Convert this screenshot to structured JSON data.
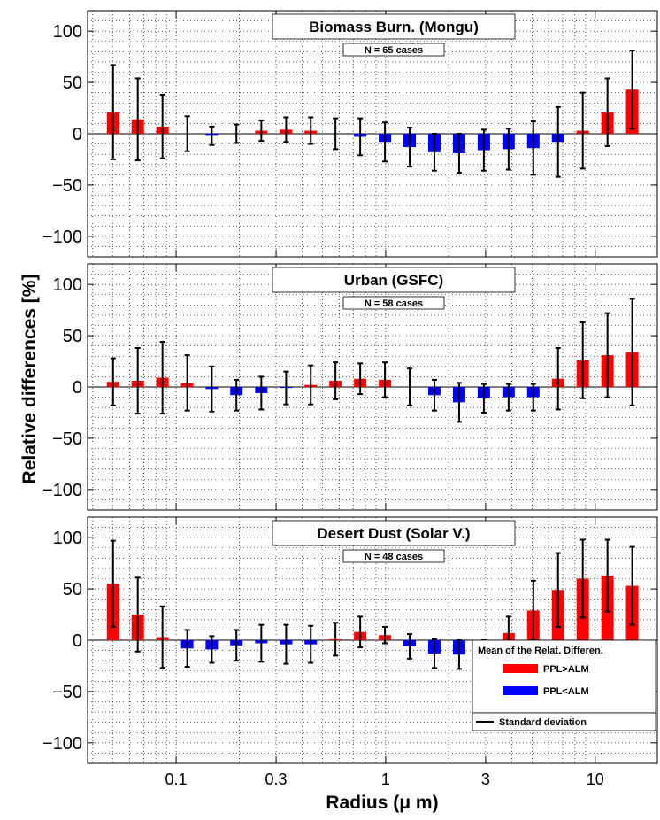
{
  "y_axis_label": "Relative differences [%]",
  "x_axis_label": "Radius (μ m)",
  "x_tick_labels": [
    "0.1",
    "0.3",
    "1",
    "3",
    "10"
  ],
  "y_tick_labels": [
    "100",
    "50",
    "0",
    "−50",
    "−100"
  ],
  "legend": {
    "title": "Mean of the Relat. Differen.",
    "positive_label": "PPL>ALM",
    "negative_label": "PPL<ALM",
    "std_label": "Standard deviation"
  },
  "colors": {
    "positive": "#ff0000",
    "negative": "#0000ff",
    "errorbar": "#000000"
  },
  "chart_data": [
    {
      "type": "bar",
      "title": "Biomass Burn. (Mongu)",
      "subtitle": "N = 65 cases",
      "xscale": "log",
      "ylim": [
        -120,
        120
      ],
      "x": [
        0.05,
        0.0656,
        0.0861,
        0.113,
        0.148,
        0.194,
        0.255,
        0.335,
        0.439,
        0.576,
        0.756,
        0.992,
        1.302,
        1.708,
        2.242,
        2.942,
        3.861,
        5.066,
        6.648,
        8.724,
        11.45,
        15.02
      ],
      "mean": [
        21,
        14,
        7,
        0,
        -2,
        0,
        3,
        4,
        3,
        0,
        -3,
        -8,
        -13,
        -18,
        -19,
        -16,
        -15,
        -14,
        -8,
        3,
        21,
        43
      ],
      "std": [
        46,
        40,
        31,
        17,
        9,
        9,
        10,
        12,
        13,
        15,
        18,
        19,
        19,
        18,
        19,
        20,
        20,
        26,
        34,
        37,
        33,
        38
      ]
    },
    {
      "type": "bar",
      "title": "Urban (GSFC)",
      "subtitle": "N = 58 cases",
      "xscale": "log",
      "ylim": [
        -120,
        120
      ],
      "x": [
        0.05,
        0.0656,
        0.0861,
        0.113,
        0.148,
        0.194,
        0.255,
        0.335,
        0.439,
        0.576,
        0.756,
        0.992,
        1.302,
        1.708,
        2.242,
        2.942,
        3.861,
        5.066,
        6.648,
        8.724,
        11.45,
        15.02
      ],
      "mean": [
        5,
        6,
        9,
        4,
        -2,
        -8,
        -6,
        -1,
        2,
        6,
        8,
        7,
        0,
        -8,
        -15,
        -11,
        -10,
        -10,
        8,
        26,
        31,
        34
      ],
      "std": [
        23,
        32,
        35,
        27,
        22,
        15,
        16,
        16,
        19,
        18,
        15,
        17,
        18,
        15,
        19,
        14,
        13,
        13,
        30,
        37,
        41,
        52
      ]
    },
    {
      "type": "bar",
      "title": "Desert Dust (Solar V.)",
      "subtitle": "N = 48 cases",
      "xscale": "log",
      "ylim": [
        -120,
        120
      ],
      "x": [
        0.05,
        0.0656,
        0.0861,
        0.113,
        0.148,
        0.194,
        0.255,
        0.335,
        0.439,
        0.576,
        0.756,
        0.992,
        1.302,
        1.708,
        2.242,
        2.942,
        3.861,
        5.066,
        6.648,
        8.724,
        11.45,
        15.02
      ],
      "mean": [
        55,
        25,
        3,
        -8,
        -9,
        -5,
        -3,
        -4,
        -4,
        1,
        8,
        5,
        -6,
        -13,
        -14,
        -9,
        7,
        29,
        49,
        60,
        63,
        53
      ],
      "std": [
        42,
        36,
        30,
        18,
        13,
        15,
        18,
        19,
        18,
        16,
        15,
        8,
        12,
        14,
        14,
        9,
        16,
        29,
        36,
        38,
        35,
        38
      ]
    }
  ]
}
